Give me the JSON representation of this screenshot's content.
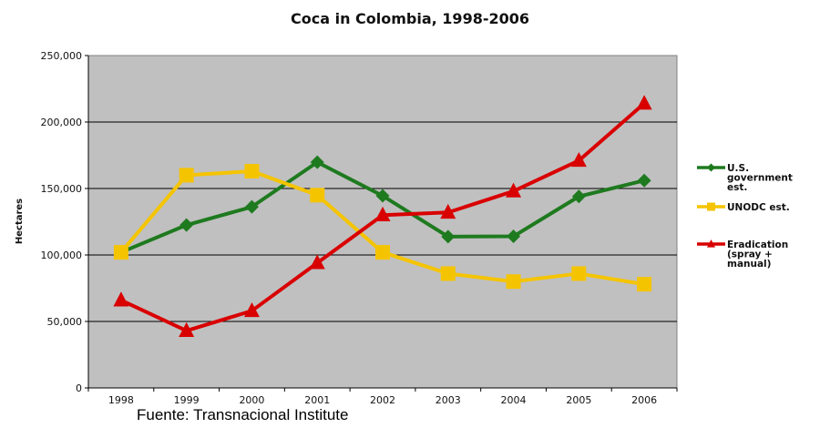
{
  "chart_data": {
    "type": "line",
    "title": "Coca in Colombia, 1998-2006",
    "xlabel": "",
    "ylabel": "Hectares",
    "categories": [
      "1998",
      "1999",
      "2000",
      "2001",
      "2002",
      "2003",
      "2004",
      "2005",
      "2006"
    ],
    "ylim": [
      0,
      250000
    ],
    "yticks": [
      0,
      50000,
      100000,
      150000,
      200000,
      250000
    ],
    "ytick_labels": [
      "0",
      "50,000",
      "100,000",
      "150,000",
      "200,000",
      "250,000"
    ],
    "grid": true,
    "legend_position": "right",
    "series": [
      {
        "name": "U.S. government est.",
        "legend_lines": [
          "U.S.",
          "government",
          "est."
        ],
        "color": "#1e7a1e",
        "marker": "diamond",
        "values": [
          102000,
          122500,
          136200,
          169800,
          144500,
          113800,
          114000,
          144000,
          156000
        ]
      },
      {
        "name": "UNODC est.",
        "legend_lines": [
          "UNODC est."
        ],
        "color": "#f5c400",
        "marker": "square",
        "values": [
          102000,
          160000,
          163000,
          145000,
          102000,
          86000,
          80000,
          86000,
          78000
        ]
      },
      {
        "name": "Eradication (spray + manual)",
        "legend_lines": [
          "Eradication",
          "(spray +",
          "manual)"
        ],
        "color": "#d90000",
        "marker": "triangle",
        "values": [
          66000,
          43000,
          58000,
          94000,
          130000,
          132000,
          148000,
          171000,
          214000
        ]
      }
    ]
  },
  "source": "Fuente: Transnacional Institute"
}
